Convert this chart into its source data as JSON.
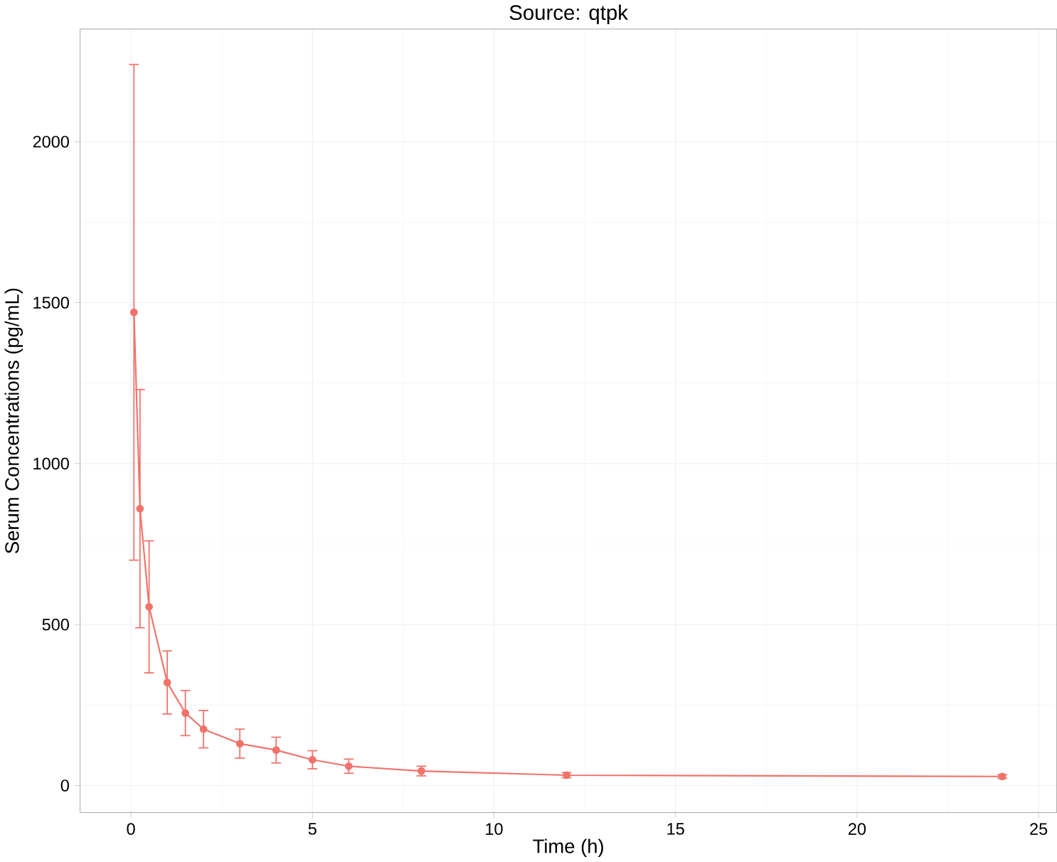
{
  "chart_data": {
    "type": "line",
    "title": "Source: qtpk",
    "xlabel": "Time (h)",
    "ylabel": "Serum Concentrations (pg/mL)",
    "x": [
      0.083,
      0.25,
      0.5,
      1,
      1.5,
      2,
      3,
      4,
      5,
      6,
      8,
      12,
      24
    ],
    "series": [
      {
        "color": "#ef736b",
        "values": [
          1470,
          860,
          555,
          320,
          225,
          175,
          130,
          110,
          80,
          60,
          45,
          32,
          28
        ],
        "errors": [
          770,
          370,
          205,
          98,
          70,
          58,
          45,
          40,
          28,
          22,
          15,
          8,
          6
        ]
      }
    ],
    "xlim": [
      -1.4,
      25.5
    ],
    "ylim": [
      -84,
      2350
    ],
    "xticks": [
      0,
      5,
      10,
      15,
      20,
      25
    ],
    "yticks": [
      0,
      500,
      1000,
      1500,
      2000
    ],
    "grid": true,
    "marker": "circle",
    "line_style": "solid"
  }
}
